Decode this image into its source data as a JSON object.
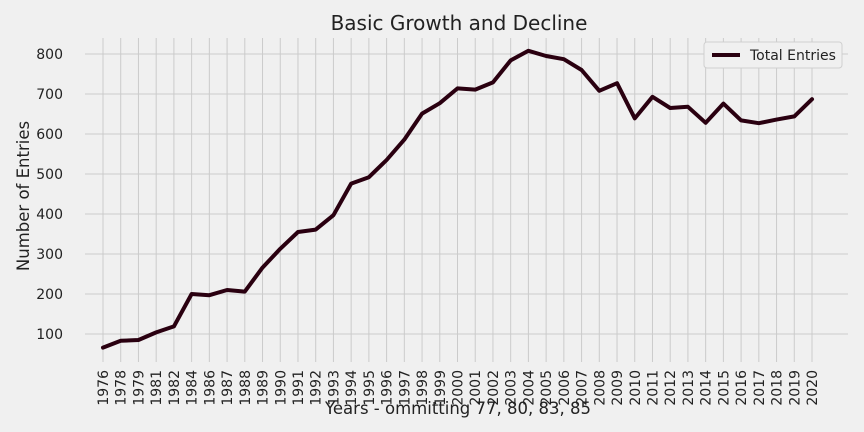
{
  "chart_data": {
    "type": "line",
    "title": "Basic Growth and Decline",
    "xlabel": "Years - ommitting 77, 80, 83, 85",
    "ylabel": "Number of Entries",
    "categories": [
      "1976",
      "1978",
      "1979",
      "1981",
      "1982",
      "1984",
      "1986",
      "1987",
      "1988",
      "1989",
      "1990",
      "1991",
      "1992",
      "1993",
      "1994",
      "1995",
      "1996",
      "1997",
      "1998",
      "1999",
      "2000",
      "2001",
      "2002",
      "2003",
      "2004",
      "2005",
      "2006",
      "2007",
      "2008",
      "2009",
      "2010",
      "2011",
      "2012",
      "2013",
      "2014",
      "2015",
      "2016",
      "2017",
      "2018",
      "2019",
      "2020"
    ],
    "series": [
      {
        "name": "Total Entries",
        "color": "#2a0010",
        "values": [
          66,
          83,
          85,
          104,
          119,
          200,
          197,
          210,
          206,
          266,
          313,
          355,
          361,
          397,
          476,
          492,
          535,
          586,
          651,
          677,
          714,
          711,
          729,
          784,
          808,
          795,
          787,
          760,
          708,
          727,
          639,
          693,
          665,
          668,
          628,
          676,
          634,
          627,
          636,
          644,
          687
        ]
      }
    ],
    "yticks": [
      100,
      200,
      300,
      400,
      500,
      600,
      700,
      800
    ],
    "ylim": [
      30,
      840
    ],
    "grid": true,
    "legend_position": "top-right",
    "background": "#f0f0f0",
    "grid_color": "#cbcbcb"
  }
}
